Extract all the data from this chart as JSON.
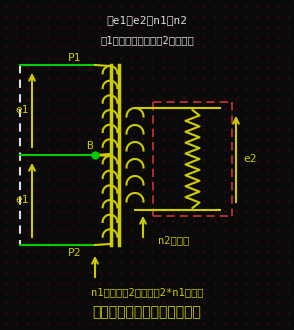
{
  "bg_color": "#0a0a0a",
  "dot_color": "#3a0808",
  "green_color": "#00cc00",
  "yellow_color": "#cccc00",
  "white_color": "#dddddd",
  "dashed_color": "#cc3333",
  "coil_color": "#cccc00",
  "title_text": "プッシュプル用理想トランス",
  "eq1_text": "セe1：e2＝n1：n2",
  "eq2_text": "セ1次側電力の合計＝2次側電力",
  "label_P1": "P1",
  "label_P2": "P2",
  "label_B": "B",
  "label_e1_top": "e1",
  "label_e1_bot": "e1",
  "label_e2": "e2",
  "label_n1": "n1回巻きが2個で、誈2*n1回巻き",
  "label_n2": "n2回巻き"
}
